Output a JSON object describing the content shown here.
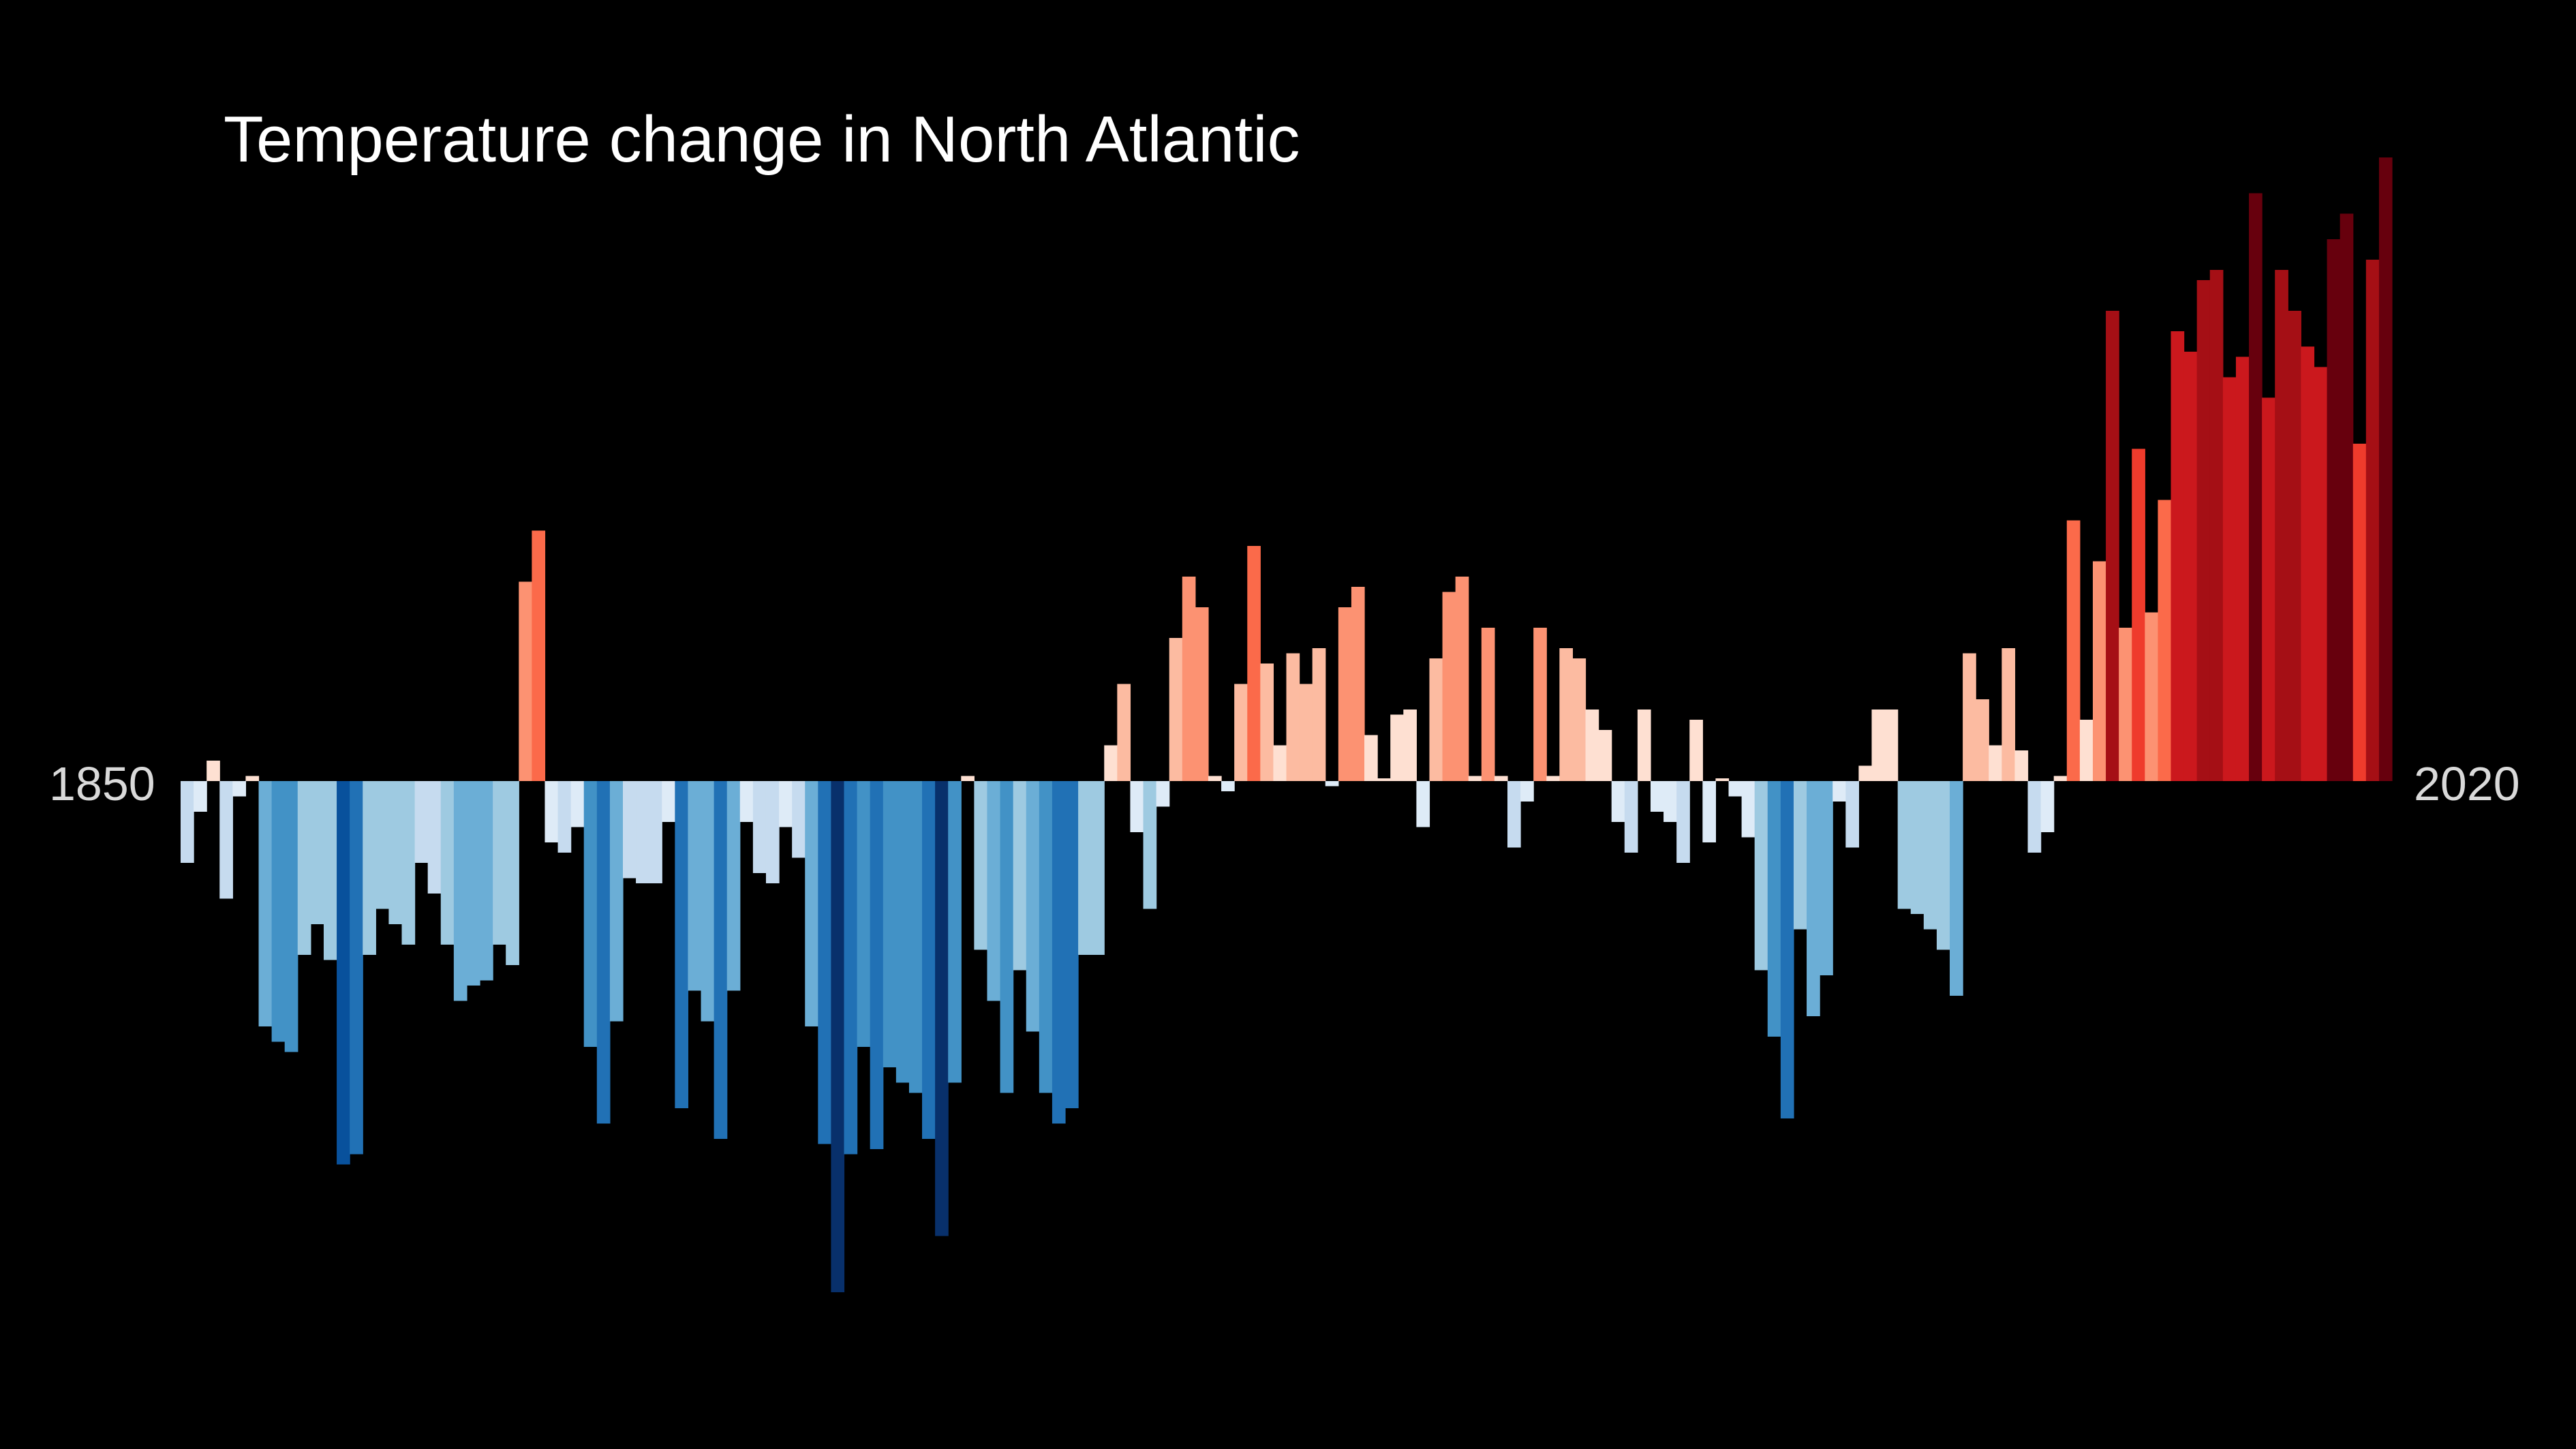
{
  "chart_data": {
    "type": "bar",
    "title": "Temperature change in North Atlantic",
    "start_label": "1850",
    "end_label": "2020",
    "ylim": [
      -1.0,
      1.2
    ],
    "values": [
      -0.16,
      -0.06,
      0.04,
      -0.23,
      -0.03,
      0.01,
      -0.48,
      -0.51,
      -0.53,
      -0.34,
      -0.28,
      -0.35,
      -0.75,
      -0.73,
      -0.34,
      -0.25,
      -0.28,
      -0.32,
      -0.16,
      -0.22,
      -0.32,
      -0.43,
      -0.4,
      -0.39,
      -0.32,
      -0.36,
      0.39,
      0.49,
      -0.12,
      -0.14,
      -0.09,
      -0.52,
      -0.67,
      -0.47,
      -0.19,
      -0.2,
      -0.2,
      -0.08,
      -0.64,
      -0.41,
      -0.47,
      -0.7,
      -0.41,
      -0.08,
      -0.18,
      -0.2,
      -0.09,
      -0.15,
      -0.48,
      -0.71,
      -1.0,
      -0.73,
      -0.52,
      -0.72,
      -0.56,
      -0.59,
      -0.61,
      -0.7,
      -0.89,
      -0.59,
      0.01,
      -0.33,
      -0.43,
      -0.61,
      -0.37,
      -0.49,
      -0.61,
      -0.67,
      -0.64,
      -0.34,
      -0.34,
      0.07,
      0.19,
      -0.1,
      -0.25,
      -0.05,
      0.28,
      0.4,
      0.34,
      0.01,
      -0.02,
      0.19,
      0.46,
      0.23,
      0.07,
      0.25,
      0.19,
      0.26,
      -0.01,
      0.34,
      0.38,
      0.09,
      0.0,
      0.13,
      0.14,
      -0.09,
      0.24,
      0.37,
      0.4,
      0.01,
      0.3,
      0.01,
      -0.13,
      -0.04,
      0.3,
      0.01,
      0.26,
      0.24,
      0.14,
      0.1,
      -0.08,
      -0.14,
      0.14,
      -0.06,
      -0.08,
      -0.16,
      0.12,
      -0.12,
      0.0,
      -0.03,
      -0.11,
      -0.37,
      -0.5,
      -0.66,
      -0.29,
      -0.46,
      -0.38,
      -0.04,
      -0.13,
      0.03,
      0.14,
      0.14,
      -0.25,
      -0.26,
      -0.29,
      -0.33,
      -0.42,
      0.25,
      0.16,
      0.07,
      0.26,
      0.06,
      -0.14,
      -0.1,
      0.01,
      0.51,
      0.12,
      0.43,
      0.92,
      0.3,
      0.65,
      0.33,
      0.55,
      0.88,
      0.84,
      0.98,
      1.0,
      0.79,
      0.83,
      1.15,
      0.75,
      1.0,
      0.92,
      0.85,
      0.81,
      1.06,
      1.11,
      0.66,
      1.02,
      1.22
    ]
  }
}
